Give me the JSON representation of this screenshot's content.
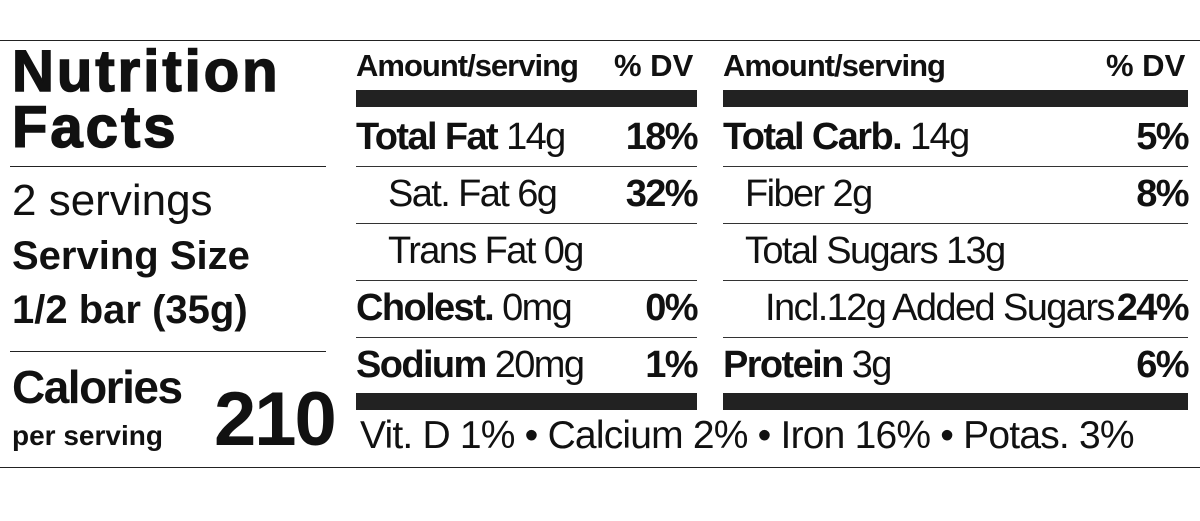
{
  "label": {
    "title": "Nutrition Facts",
    "servings": "2 servings",
    "serving_size_label": "Serving Size",
    "serving_size": "1/2 bar (35g)",
    "calories_label": "Calories",
    "calories_sub": "per serving",
    "calories": "210",
    "left": {
      "amount_header": "Amount/serving",
      "dv_header": "% DV",
      "rows": [
        {
          "name": "Total Fat",
          "amount": "14g",
          "dv": "18%"
        },
        {
          "name": "Sat. Fat",
          "amount": "6g",
          "dv": "32%"
        },
        {
          "name": "Trans Fat",
          "amount": "0g",
          "dv": null
        },
        {
          "name": "Cholest.",
          "amount": "0mg",
          "dv": "0%"
        },
        {
          "name": "Sodium",
          "amount": "20mg",
          "dv": "1%"
        }
      ]
    },
    "right": {
      "amount_header": "Amount/serving",
      "dv_header": "% DV",
      "rows": [
        {
          "name": "Total Carb.",
          "amount": "14g",
          "dv": "5%"
        },
        {
          "name": "Fiber",
          "amount": "2g",
          "dv": "8%"
        },
        {
          "name": "Total Sugars",
          "amount": "13g",
          "dv": null
        },
        {
          "name": "Incl.12g Added Sugars",
          "amount": null,
          "dv": "24%"
        },
        {
          "name": "Protein",
          "amount": "3g",
          "dv": "6%"
        }
      ]
    },
    "footnote": "Vit. D 1% • Calcium 2% • Iron 16% • Potas. 3%"
  }
}
